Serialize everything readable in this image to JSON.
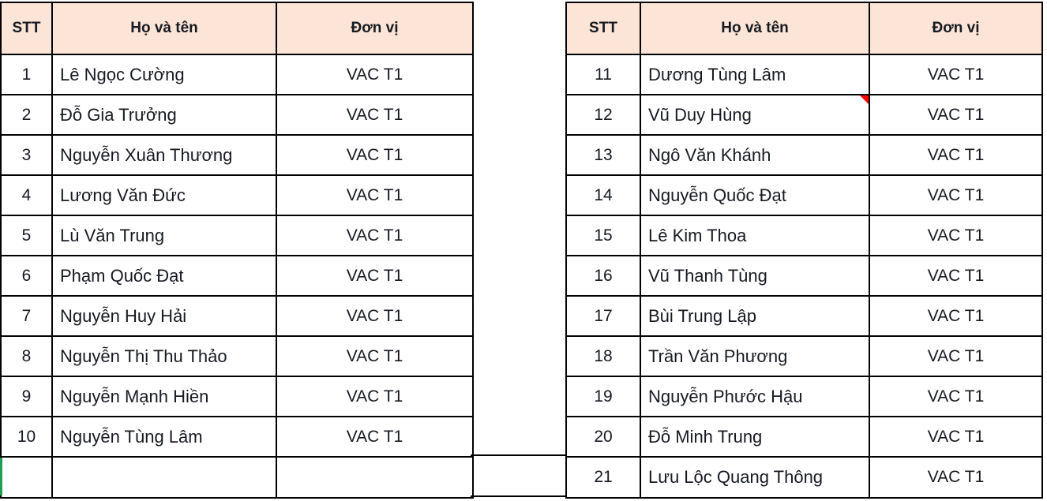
{
  "colors": {
    "header_fill": "#fce4d6",
    "grid_border": "#000000",
    "text": "#161a22",
    "comment_marker": "#ff0000",
    "selection_edge": "#1f9d55"
  },
  "left_table": {
    "headers": {
      "stt": "STT",
      "name": "Họ và tên",
      "unit": "Đơn vị"
    },
    "rows": [
      {
        "stt": "1",
        "name": "Lê Ngọc Cường",
        "unit": "VAC T1"
      },
      {
        "stt": "2",
        "name": "Đỗ Gia Trưởng",
        "unit": "VAC T1"
      },
      {
        "stt": "3",
        "name": "Nguyễn Xuân Thương",
        "unit": "VAC T1"
      },
      {
        "stt": "4",
        "name": "Lương Văn Đức",
        "unit": "VAC T1"
      },
      {
        "stt": "5",
        "name": "Lù Văn Trung",
        "unit": "VAC T1"
      },
      {
        "stt": "6",
        "name": "Phạm Quốc Đạt",
        "unit": "VAC T1"
      },
      {
        "stt": "7",
        "name": "Nguyễn Huy Hải",
        "unit": "VAC T1"
      },
      {
        "stt": "8",
        "name": "Nguyễn Thị Thu Thảo",
        "unit": "VAC T1"
      },
      {
        "stt": "9",
        "name": "Nguyễn Mạnh Hiền",
        "unit": "VAC T1"
      },
      {
        "stt": "10",
        "name": "Nguyễn Tùng Lâm",
        "unit": "VAC T1"
      },
      {
        "stt": "",
        "name": "",
        "unit": ""
      }
    ]
  },
  "right_table": {
    "headers": {
      "stt": "STT",
      "name": "Họ và tên",
      "unit": "Đơn vị"
    },
    "rows": [
      {
        "stt": "11",
        "name": "Dương Tùng Lâm",
        "unit": "VAC T1"
      },
      {
        "stt": "12",
        "name": "Vũ Duy Hùng",
        "unit": "VAC T1",
        "comment_marker": true
      },
      {
        "stt": "13",
        "name": "Ngô Văn Khánh",
        "unit": "VAC T1"
      },
      {
        "stt": "14",
        "name": "Nguyễn Quốc Đạt",
        "unit": "VAC T1"
      },
      {
        "stt": "15",
        "name": "Lê Kim Thoa",
        "unit": "VAC T1"
      },
      {
        "stt": "16",
        "name": "Vũ Thanh Tùng",
        "unit": "VAC T1"
      },
      {
        "stt": "17",
        "name": "Bùi Trung Lập",
        "unit": "VAC T1"
      },
      {
        "stt": "18",
        "name": "Trần Văn Phương",
        "unit": "VAC T1"
      },
      {
        "stt": "19",
        "name": "Nguyễn Phước Hậu",
        "unit": "VAC T1"
      },
      {
        "stt": "20",
        "name": "Đỗ Minh Trung",
        "unit": "VAC T1"
      },
      {
        "stt": "21",
        "name": "Lưu Lộc Quang Thông",
        "unit": "VAC T1"
      }
    ]
  }
}
